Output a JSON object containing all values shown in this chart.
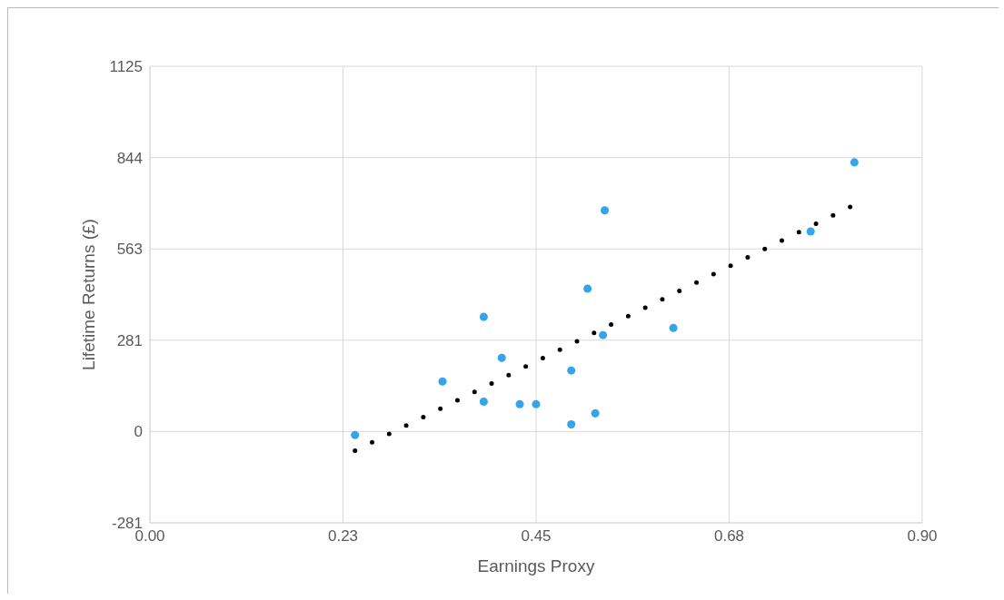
{
  "chart_data": {
    "type": "scatter",
    "xlabel": "Earnings Proxy",
    "ylabel": "Lifetime Returns (£)",
    "xlim": [
      0,
      0.9
    ],
    "xticks": [
      {
        "value": 0,
        "label": "0.00"
      },
      {
        "value": 0.225,
        "label": "0.23"
      },
      0.45,
      {
        "value": 0.675,
        "label": "0.68"
      },
      {
        "value": 0.9,
        "label": "0.90"
      }
    ],
    "ylim": [
      -281.25,
      1125
    ],
    "yticks": [
      {
        "value": -281.25,
        "label": "-281"
      },
      0,
      {
        "value": 281.25,
        "label": "281"
      },
      {
        "value": 562.5,
        "label": "563"
      },
      {
        "value": 843.75,
        "label": "844"
      },
      1125
    ],
    "grid": true,
    "marker": "circle",
    "series": [
      {
        "type": "scatter",
        "color": "#35a4e8",
        "x": [
          0.239,
          0.341,
          0.389,
          0.389,
          0.41,
          0.431,
          0.45,
          0.491,
          0.491,
          0.51,
          0.519,
          0.528,
          0.53,
          0.61,
          0.77,
          0.821
        ],
        "values": [
          -11,
          154,
          353,
          92,
          227,
          84,
          84,
          188,
          22,
          440,
          56,
          297,
          681,
          319,
          616,
          829
        ]
      },
      {
        "type": "line",
        "color": "#000000",
        "line_style": "dotted",
        "marker": "none",
        "x": [
          0.239,
          0.816
        ],
        "values": [
          -59,
          692
        ]
      }
    ]
  }
}
